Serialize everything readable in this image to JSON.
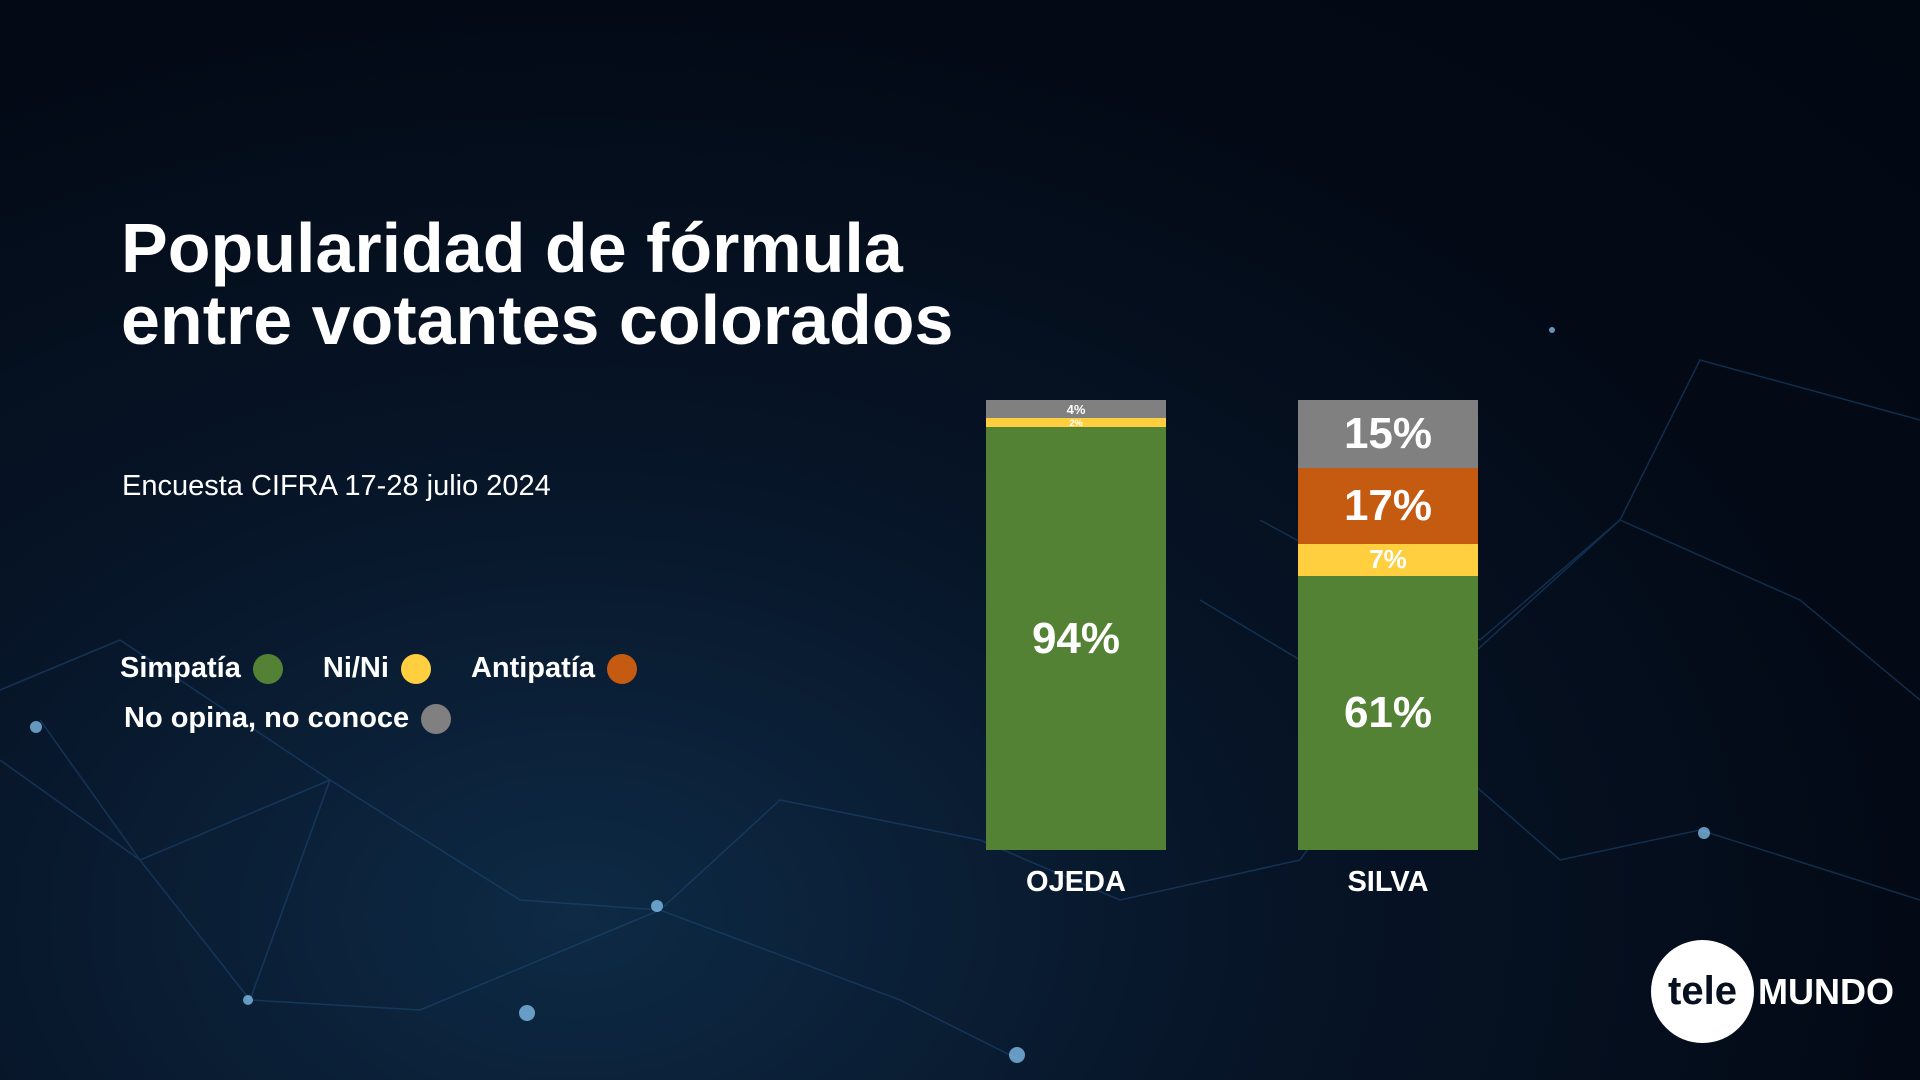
{
  "title": "Popularidad de fórmula entre votantes colorados",
  "subtitle": "Encuesta CIFRA  17-28 julio 2024",
  "logo": {
    "left": "tele",
    "right": "MUNDO"
  },
  "colors": {
    "Simpatía": "#548235",
    "Ni/Ni": "#FFCF3F",
    "Antipatía": "#C55A11",
    "No opina, no conoce": "#808080"
  },
  "chart_data": {
    "type": "bar",
    "stacked": true,
    "title": "Popularidad de fórmula entre votantes colorados",
    "categories": [
      "OJEDA",
      "SILVA"
    ],
    "series": [
      {
        "name": "Simpatía",
        "values": [
          94,
          61
        ]
      },
      {
        "name": "Ni/Ni",
        "values": [
          2,
          7
        ]
      },
      {
        "name": "Antipatía",
        "values": [
          0,
          17
        ]
      },
      {
        "name": "No opina, no conoce",
        "values": [
          4,
          15
        ]
      }
    ],
    "unit": "%",
    "ylim": [
      0,
      100
    ],
    "legend": "left"
  }
}
